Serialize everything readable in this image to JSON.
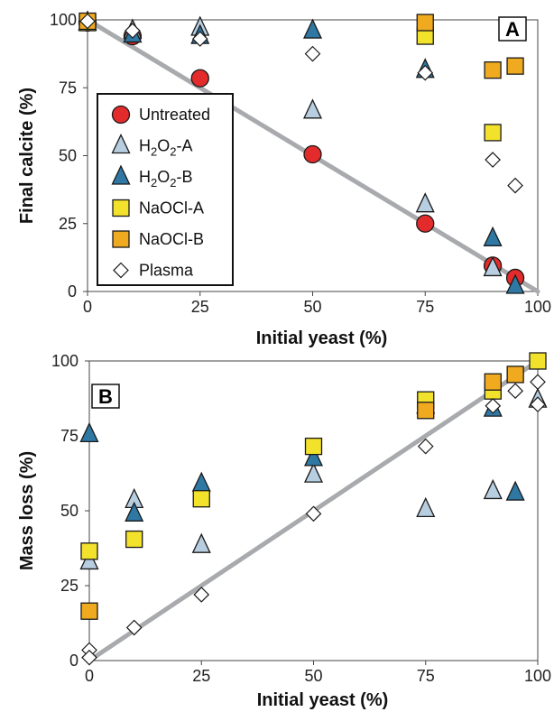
{
  "chart_data": [
    {
      "type": "scatter",
      "panel_label": "A",
      "xlabel": "Initial yeast (%)",
      "ylabel": "Final calcite (%)",
      "xlim": [
        0,
        100
      ],
      "ylim": [
        0,
        100
      ],
      "xticks": [
        "0",
        "25",
        "50",
        "75",
        "100"
      ],
      "yticks": [
        "0",
        "25",
        "50",
        "75",
        "100"
      ],
      "grid": false,
      "legend_position": "left",
      "reference_line": [
        [
          0,
          100
        ],
        [
          100,
          0
        ]
      ],
      "series": [
        {
          "name": "Untreated",
          "key": "untreated",
          "marker": "circle",
          "color": "#e32b2b",
          "points": [
            [
              0,
              99
            ],
            [
              10,
              94
            ],
            [
              25,
              78.5
            ],
            [
              50,
              50.5
            ],
            [
              75,
              25
            ],
            [
              90,
              9.5
            ],
            [
              95,
              5
            ]
          ]
        },
        {
          "name": "H2O2-A",
          "key": "h2o2a",
          "marker": "triangle",
          "color": "#b7cde0",
          "points": [
            [
              0,
              99
            ],
            [
              10,
              96
            ],
            [
              25,
              97
            ],
            [
              50,
              66.5
            ],
            [
              75,
              32
            ],
            [
              90,
              8.5
            ]
          ]
        },
        {
          "name": "H2O2-B",
          "key": "h2o2b",
          "marker": "triangle",
          "color": "#2e78a3",
          "points": [
            [
              0,
              99
            ],
            [
              10,
              94.5
            ],
            [
              25,
              94
            ],
            [
              50,
              96
            ],
            [
              75,
              81.5
            ],
            [
              90,
              19.5
            ],
            [
              95,
              2
            ]
          ]
        },
        {
          "name": "NaOCl-A",
          "key": "naocla",
          "marker": "square",
          "color": "#f3e22c",
          "points": [
            [
              0,
              99
            ],
            [
              75,
              94
            ],
            [
              90,
              58.5
            ]
          ]
        },
        {
          "name": "NaOCl-B",
          "key": "naoclb",
          "marker": "square",
          "color": "#f0aa20",
          "points": [
            [
              0,
              99.5
            ],
            [
              75,
              99
            ],
            [
              90,
              81.5
            ],
            [
              95,
              83
            ]
          ]
        },
        {
          "name": "Plasma",
          "key": "plasma",
          "marker": "diamond",
          "color": "#ffffff",
          "points": [
            [
              0,
              99.5
            ],
            [
              10,
              96
            ],
            [
              25,
              93
            ],
            [
              50,
              87.5
            ],
            [
              75,
              80.5
            ],
            [
              90,
              48.5
            ],
            [
              95,
              39
            ]
          ]
        }
      ]
    },
    {
      "type": "scatter",
      "panel_label": "B",
      "xlabel": "Initial yeast (%)",
      "ylabel": "Mass loss (%)",
      "xlim": [
        0,
        100
      ],
      "ylim": [
        0,
        100
      ],
      "xticks": [
        "0",
        "25",
        "50",
        "75",
        "100"
      ],
      "yticks": [
        "0",
        "25",
        "50",
        "75",
        "100"
      ],
      "grid": false,
      "reference_line": [
        [
          0,
          0
        ],
        [
          100,
          100
        ]
      ],
      "series": [
        {
          "name": "Untreated",
          "key": "untreated",
          "marker": "circle",
          "color": "#e32b2b",
          "points": []
        },
        {
          "name": "H2O2-A",
          "key": "h2o2a",
          "marker": "triangle",
          "color": "#b7cde0",
          "points": [
            [
              0,
              33
            ],
            [
              10,
              53.5
            ],
            [
              25,
              38.5
            ],
            [
              50,
              62
            ],
            [
              75,
              50.5
            ],
            [
              90,
              56.5
            ],
            [
              100,
              87
            ]
          ]
        },
        {
          "name": "H2O2-B",
          "key": "h2o2b",
          "marker": "triangle",
          "color": "#2e78a3",
          "points": [
            [
              0,
              75.5
            ],
            [
              10,
              49
            ],
            [
              25,
              59
            ],
            [
              50,
              67.5
            ],
            [
              75,
              85
            ],
            [
              90,
              84
            ],
            [
              95,
              56
            ]
          ]
        },
        {
          "name": "NaOCl-A",
          "key": "naocla",
          "marker": "square",
          "color": "#f3e22c",
          "points": [
            [
              0,
              36.5
            ],
            [
              10,
              40.5
            ],
            [
              25,
              54
            ],
            [
              50,
              71.5
            ],
            [
              75,
              87
            ],
            [
              90,
              90
            ],
            [
              100,
              100
            ]
          ]
        },
        {
          "name": "NaOCl-B",
          "key": "naoclb",
          "marker": "square",
          "color": "#f0aa20",
          "points": [
            [
              0,
              16.5
            ],
            [
              75,
              83.5
            ],
            [
              90,
              93
            ],
            [
              95,
              95.5
            ]
          ]
        },
        {
          "name": "Plasma",
          "key": "plasma",
          "marker": "diamond",
          "color": "#ffffff",
          "points": [
            [
              0,
              3.5
            ],
            [
              0,
              1
            ],
            [
              10,
              11
            ],
            [
              25,
              22
            ],
            [
              50,
              49
            ],
            [
              75,
              71.5
            ],
            [
              90,
              85
            ],
            [
              95,
              90
            ],
            [
              100,
              93
            ],
            [
              100,
              85.5
            ]
          ]
        }
      ]
    }
  ],
  "legend": [
    {
      "key": "untreated",
      "name": "Untreated",
      "label_main": "Untreated",
      "label_sub": "",
      "label_tail": ""
    },
    {
      "key": "h2o2a",
      "name": "H2O2-A",
      "label_main": "H",
      "label_sub": "2",
      "label_mid": "O",
      "label_sub2": "2",
      "label_tail": "-A"
    },
    {
      "key": "h2o2b",
      "name": "H2O2-B",
      "label_main": "H",
      "label_sub": "2",
      "label_mid": "O",
      "label_sub2": "2",
      "label_tail": "-B"
    },
    {
      "key": "naocla",
      "name": "NaOCl-A",
      "label_main": "NaOCl-A",
      "label_sub": "",
      "label_tail": ""
    },
    {
      "key": "naoclb",
      "name": "NaOCl-B",
      "label_main": "NaOCl-B",
      "label_sub": "",
      "label_tail": ""
    },
    {
      "key": "plasma",
      "name": "Plasma",
      "label_main": "Plasma",
      "label_sub": "",
      "label_tail": ""
    }
  ],
  "colors": {
    "reference_line": "#a8aaad",
    "marker_stroke": "#1a1a1a",
    "axis": "#444444"
  }
}
